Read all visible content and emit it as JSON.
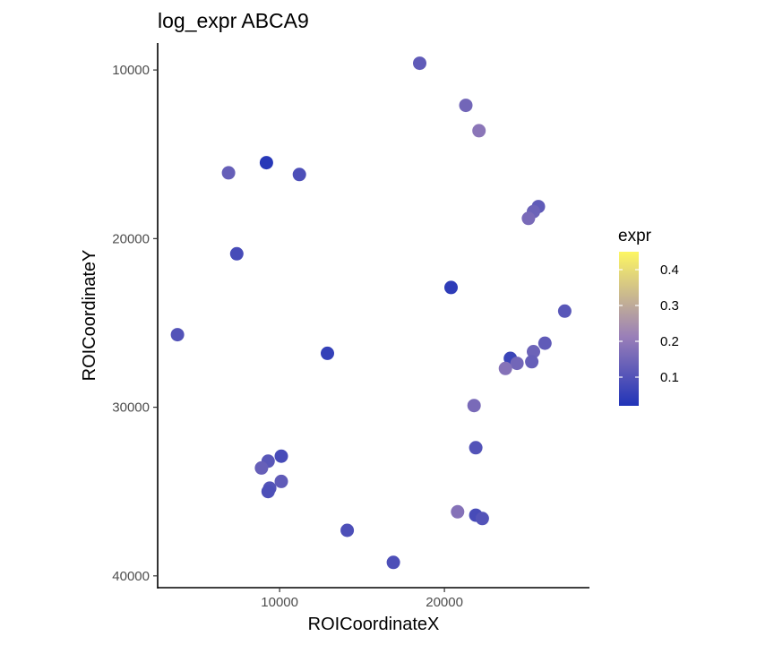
{
  "chart_data": {
    "type": "scatter",
    "title": "log_expr ABCA9",
    "xlabel": "ROICoordinateX",
    "ylabel": "ROICoordinateY",
    "xlim": [
      2600,
      28800
    ],
    "ylim": [
      8400,
      40700
    ],
    "y_reversed": true,
    "x_ticks": [
      10000,
      20000
    ],
    "x_tick_labels": [
      "10000",
      "20000"
    ],
    "y_ticks": [
      10000,
      20000,
      30000,
      40000
    ],
    "y_tick_labels": [
      "10000",
      "20000",
      "30000",
      "40000"
    ],
    "grid": false,
    "legend": {
      "title": "expr",
      "position": "right",
      "range": [
        0.02,
        0.45
      ],
      "ticks": [
        0.1,
        0.2,
        0.3,
        0.4
      ],
      "tick_labels": [
        "0.1",
        "0.2",
        "0.3",
        "0.4"
      ],
      "color_low": "#2134b8",
      "color_mid": "#9a7fb8",
      "color_high": "#fdf662"
    },
    "points": [
      {
        "x": 18500,
        "y": 9600,
        "expr": 0.12
      },
      {
        "x": 21300,
        "y": 12100,
        "expr": 0.15
      },
      {
        "x": 22100,
        "y": 13600,
        "expr": 0.19
      },
      {
        "x": 9200,
        "y": 15500,
        "expr": 0.03
      },
      {
        "x": 6900,
        "y": 16100,
        "expr": 0.13
      },
      {
        "x": 11200,
        "y": 16200,
        "expr": 0.09
      },
      {
        "x": 25700,
        "y": 18100,
        "expr": 0.12
      },
      {
        "x": 25400,
        "y": 18400,
        "expr": 0.14
      },
      {
        "x": 25100,
        "y": 18800,
        "expr": 0.16
      },
      {
        "x": 7400,
        "y": 20900,
        "expr": 0.08
      },
      {
        "x": 20400,
        "y": 22900,
        "expr": 0.04
      },
      {
        "x": 27300,
        "y": 24300,
        "expr": 0.11
      },
      {
        "x": 3800,
        "y": 25700,
        "expr": 0.1
      },
      {
        "x": 12900,
        "y": 26800,
        "expr": 0.05
      },
      {
        "x": 26100,
        "y": 26200,
        "expr": 0.12
      },
      {
        "x": 25400,
        "y": 26700,
        "expr": 0.14
      },
      {
        "x": 24000,
        "y": 27100,
        "expr": 0.06
      },
      {
        "x": 24400,
        "y": 27400,
        "expr": 0.15
      },
      {
        "x": 23700,
        "y": 27700,
        "expr": 0.18
      },
      {
        "x": 25300,
        "y": 27300,
        "expr": 0.13
      },
      {
        "x": 21800,
        "y": 29900,
        "expr": 0.16
      },
      {
        "x": 21900,
        "y": 32400,
        "expr": 0.1
      },
      {
        "x": 10100,
        "y": 32900,
        "expr": 0.08
      },
      {
        "x": 9300,
        "y": 33200,
        "expr": 0.11
      },
      {
        "x": 8900,
        "y": 33600,
        "expr": 0.13
      },
      {
        "x": 10100,
        "y": 34400,
        "expr": 0.12
      },
      {
        "x": 9400,
        "y": 34800,
        "expr": 0.1
      },
      {
        "x": 9300,
        "y": 35000,
        "expr": 0.09
      },
      {
        "x": 20800,
        "y": 36200,
        "expr": 0.18
      },
      {
        "x": 21900,
        "y": 36400,
        "expr": 0.08
      },
      {
        "x": 22300,
        "y": 36600,
        "expr": 0.1
      },
      {
        "x": 14100,
        "y": 37300,
        "expr": 0.09
      },
      {
        "x": 16900,
        "y": 39200,
        "expr": 0.09
      }
    ]
  }
}
